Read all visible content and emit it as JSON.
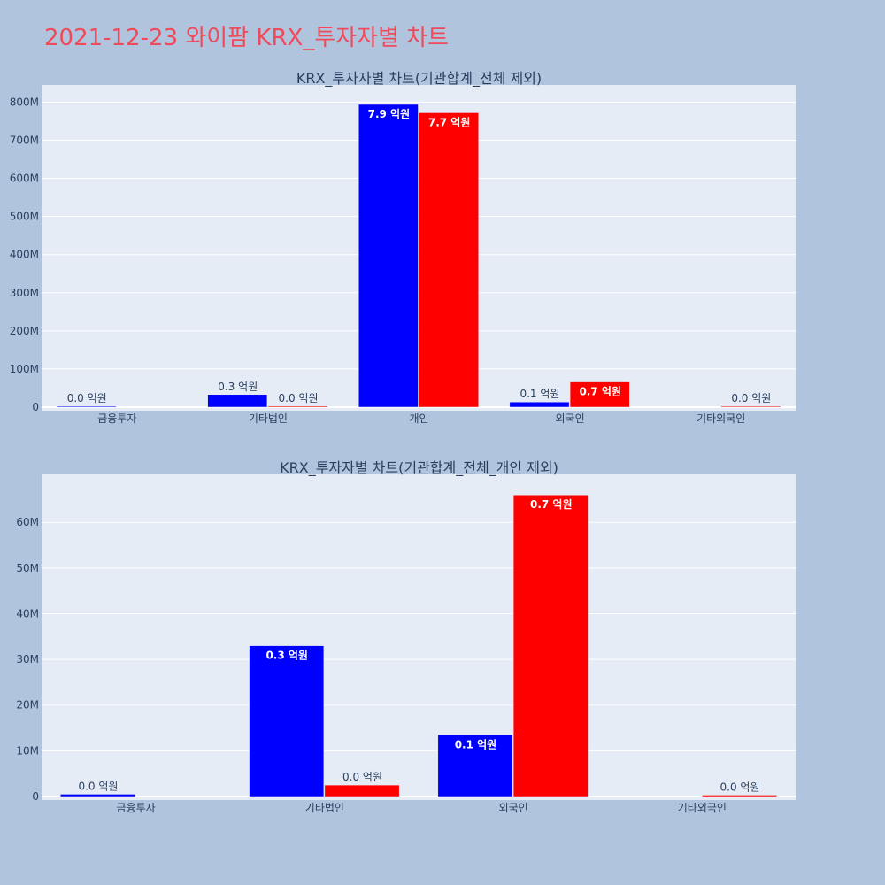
{
  "page": {
    "title": "2021-12-23 와이팜 KRX_투자자별 차트"
  },
  "colors": {
    "buy": "#0000ff",
    "sell": "#ff0000",
    "plot_bg": "#e5ecf6",
    "page_bg": "#b0c4de",
    "title": "#ef4a5a"
  },
  "chart_data": [
    {
      "type": "bar",
      "title": "KRX_투자자별 차트(기관합계_전체 제외)",
      "categories": [
        "금융투자",
        "기타법인",
        "개인",
        "외국인",
        "기타외국인"
      ],
      "series": [
        {
          "values": [
            500000,
            33000000,
            794000000,
            13500000,
            0
          ],
          "labels": [
            "0.0 억원",
            "0.3 억원",
            "7.9 억원",
            "0.1 억원",
            ""
          ]
        },
        {
          "values": [
            0,
            2500000,
            772000000,
            66000000,
            300000
          ],
          "labels": [
            "",
            "0.0 억원",
            "7.7 억원",
            "0.7 억원",
            "0.0 억원"
          ]
        }
      ],
      "yticks": [
        "0",
        "100M",
        "200M",
        "300M",
        "400M",
        "500M",
        "600M",
        "700M",
        "800M"
      ],
      "ylim": [
        0,
        845000000
      ],
      "grid": true
    },
    {
      "type": "bar",
      "title": "KRX_투자자별 차트(기관합계_전체_개인 제외)",
      "categories": [
        "금융투자",
        "기타법인",
        "외국인",
        "기타외국인"
      ],
      "series": [
        {
          "values": [
            500000,
            33000000,
            13500000,
            0
          ],
          "labels": [
            "0.0 억원",
            "0.3 억원",
            "0.1 억원",
            ""
          ]
        },
        {
          "values": [
            0,
            2500000,
            66000000,
            300000
          ],
          "labels": [
            "",
            "0.0 억원",
            "0.7 억원",
            "0.0 억원"
          ]
        }
      ],
      "yticks": [
        "0",
        "10M",
        "20M",
        "30M",
        "40M",
        "50M",
        "60M"
      ],
      "ylim": [
        0,
        70500000
      ],
      "grid": true
    }
  ]
}
